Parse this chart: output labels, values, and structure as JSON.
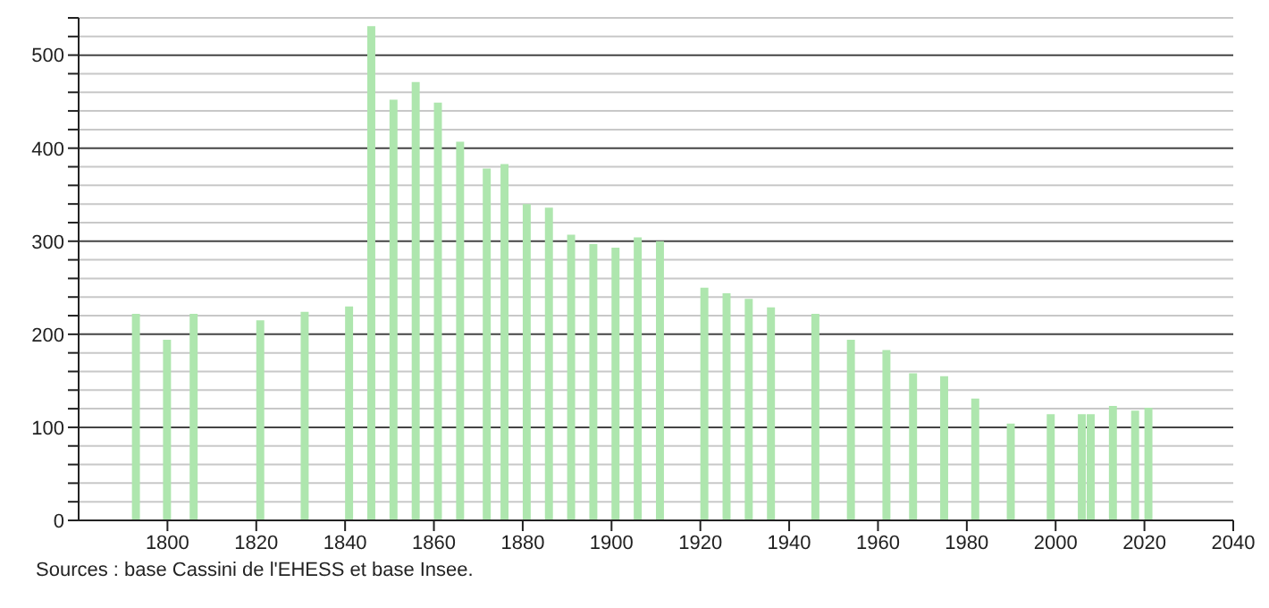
{
  "chart_data": {
    "type": "bar",
    "x": [
      1793,
      1800,
      1806,
      1821,
      1831,
      1841,
      1846,
      1851,
      1856,
      1861,
      1866,
      1872,
      1876,
      1881,
      1886,
      1891,
      1896,
      1901,
      1906,
      1911,
      1921,
      1926,
      1931,
      1936,
      1946,
      1954,
      1962,
      1968,
      1975,
      1982,
      1990,
      1999,
      2006,
      2008,
      2013,
      2018,
      2021
    ],
    "values": [
      222,
      194,
      222,
      215,
      224,
      230,
      531,
      452,
      471,
      449,
      407,
      378,
      383,
      340,
      336,
      307,
      297,
      293,
      304,
      300,
      250,
      244,
      238,
      229,
      222,
      194,
      183,
      158,
      155,
      131,
      104,
      114,
      114,
      114,
      123,
      118,
      121
    ],
    "color": "#aee6ae",
    "xlim": [
      1780,
      2040
    ],
    "xticks": [
      1800,
      1820,
      1840,
      1860,
      1880,
      1900,
      1920,
      1940,
      1960,
      1980,
      2000,
      2020,
      2040
    ],
    "ylim": [
      0,
      540
    ],
    "yticks": [
      0,
      {
        "value": 20,
        "label": null
      },
      {
        "value": 40,
        "label": null
      },
      {
        "value": 60,
        "label": null
      },
      {
        "value": 80,
        "label": null
      },
      100,
      {
        "value": 120,
        "label": null
      },
      {
        "value": 140,
        "label": null
      },
      {
        "value": 160,
        "label": null
      },
      {
        "value": 180,
        "label": null
      },
      200,
      {
        "value": 220,
        "label": null
      },
      {
        "value": 240,
        "label": null
      },
      {
        "value": 260,
        "label": null
      },
      {
        "value": 280,
        "label": null
      },
      300,
      {
        "value": 320,
        "label": null
      },
      {
        "value": 340,
        "label": null
      },
      {
        "value": 360,
        "label": null
      },
      {
        "value": 380,
        "label": null
      },
      400,
      {
        "value": 420,
        "label": null
      },
      {
        "value": 440,
        "label": null
      },
      {
        "value": 460,
        "label": null
      },
      {
        "value": 480,
        "label": null
      },
      500,
      {
        "value": 520,
        "label": null
      },
      {
        "value": 540,
        "label": null
      }
    ],
    "grid": "y",
    "annotations": [
      "Sources : base Cassini de l'EHESS et base Insee."
    ]
  }
}
